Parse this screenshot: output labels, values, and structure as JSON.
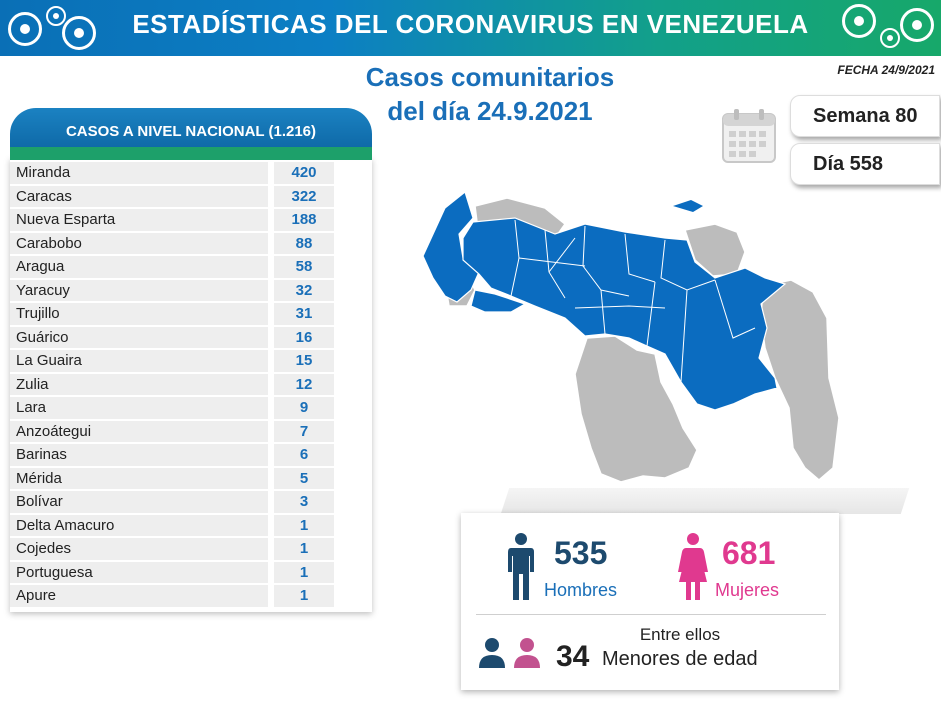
{
  "header": {
    "title": "ESTADÍSTICAS DEL CORONAVIRUS EN VENEZUELA"
  },
  "title_line1": "Casos comunitarios",
  "title_line2": "del día 24.9.2021",
  "fecha": "FECHA 24/9/2021",
  "semana": "Semana 80",
  "dia": "Día 558",
  "table": {
    "header": "CASOS A NIVEL NACIONAL (1.216)",
    "rows": [
      {
        "name": "Miranda",
        "value": "420"
      },
      {
        "name": "Caracas",
        "value": "322"
      },
      {
        "name": "Nueva Esparta",
        "value": "188"
      },
      {
        "name": "Carabobo",
        "value": "88"
      },
      {
        "name": "Aragua",
        "value": "58"
      },
      {
        "name": "Yaracuy",
        "value": "32"
      },
      {
        "name": "Trujillo",
        "value": "31"
      },
      {
        "name": "Guárico",
        "value": "16"
      },
      {
        "name": "La Guaira",
        "value": "15"
      },
      {
        "name": "Zulia",
        "value": "12"
      },
      {
        "name": "Lara",
        "value": "9"
      },
      {
        "name": "Anzoátegui",
        "value": "7"
      },
      {
        "name": "Barinas",
        "value": "6"
      },
      {
        "name": "Mérida",
        "value": "5"
      },
      {
        "name": "Bolívar",
        "value": "3"
      },
      {
        "name": "Delta Amacuro",
        "value": "1"
      },
      {
        "name": "Cojedes",
        "value": "1"
      },
      {
        "name": "Portuguesa",
        "value": "1"
      },
      {
        "name": "Apure",
        "value": "1"
      }
    ]
  },
  "stats": {
    "hombres_count": "535",
    "hombres_label": "Hombres",
    "mujeres_count": "681",
    "mujeres_label": "Mujeres",
    "entre_ellos": "Entre ellos",
    "menores_count": "34",
    "menores_label": "Menores de edad"
  },
  "colors": {
    "blue": "#1a6fb8",
    "map_blue": "#0b6cc0",
    "map_gray": "#b8b8b8",
    "pink": "#e0398f",
    "male_icon": "#1d4a6e",
    "green": "#1da06a"
  }
}
